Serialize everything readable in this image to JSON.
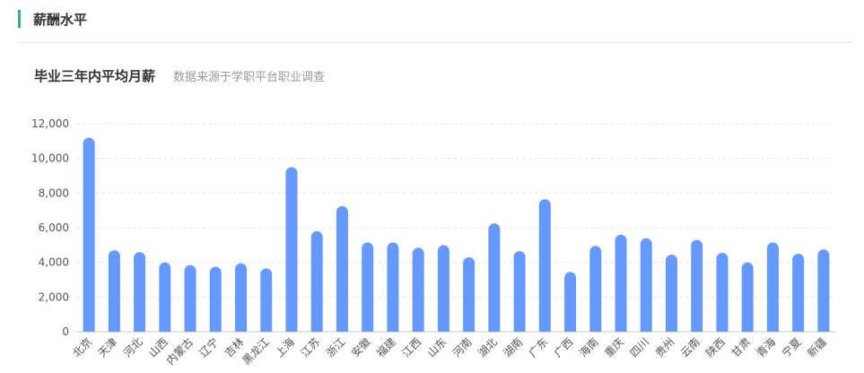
{
  "section": {
    "title": "薪酬水平",
    "accent_color": "#2bb48a"
  },
  "chart_data": {
    "type": "bar",
    "title": "毕业三年内平均月薪",
    "subtitle": "数据来源于学职平台职业调查",
    "bar_color": "#6699ff",
    "ylim": [
      0,
      12000
    ],
    "yticks": [
      0,
      2000,
      4000,
      6000,
      8000,
      10000,
      12000
    ],
    "ytick_labels": [
      "0",
      "2,000",
      "4,000",
      "6,000",
      "8,000",
      "10,000",
      "12,000"
    ],
    "grid": true,
    "categories": [
      "北京",
      "天津",
      "河北",
      "山西",
      "内蒙古",
      "辽宁",
      "吉林",
      "黑龙江",
      "上海",
      "江苏",
      "浙江",
      "安徽",
      "福建",
      "江西",
      "山东",
      "河南",
      "湖北",
      "湖南",
      "广东",
      "广西",
      "海南",
      "重庆",
      "四川",
      "贵州",
      "云南",
      "陕西",
      "甘肃",
      "青海",
      "宁夏",
      "新疆"
    ],
    "values": [
      11200,
      4700,
      4600,
      4000,
      3850,
      3750,
      3950,
      3650,
      9500,
      5800,
      7250,
      5150,
      5150,
      4850,
      5000,
      4300,
      6250,
      4650,
      7650,
      3450,
      4950,
      5600,
      5400,
      4450,
      5300,
      4550,
      4000,
      5150,
      4500,
      4750
    ]
  }
}
